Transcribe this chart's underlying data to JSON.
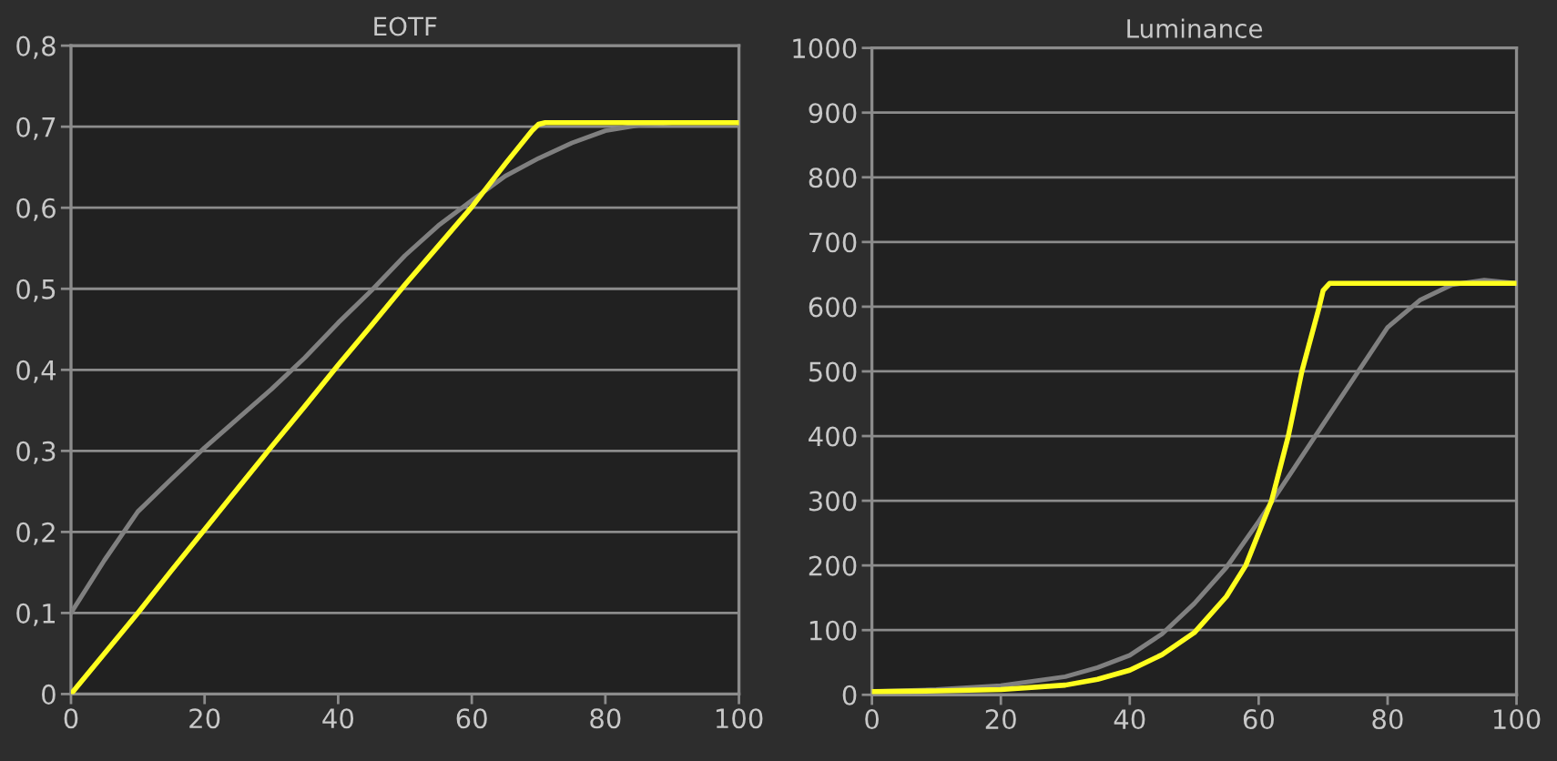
{
  "chart_data": [
    {
      "type": "line",
      "title": "EOTF",
      "xlim": [
        0,
        100
      ],
      "ylim": [
        0,
        0.8
      ],
      "xticks": [
        0,
        20,
        40,
        60,
        80,
        100
      ],
      "yticks": [
        0,
        {
          "value": 0.1,
          "label": "0,1"
        },
        {
          "value": 0.2,
          "label": "0,2"
        },
        {
          "value": 0.3,
          "label": "0,3"
        },
        {
          "value": 0.4,
          "label": "0,4"
        },
        {
          "value": 0.5,
          "label": "0,5"
        },
        {
          "value": 0.6,
          "label": "0,6"
        },
        {
          "value": 0.7,
          "label": "0,7"
        },
        {
          "value": 0.8,
          "label": "0,8"
        }
      ],
      "grid": "y",
      "series": [
        {
          "color": "#808080",
          "x": [
            0,
            5,
            10,
            15,
            20,
            25,
            30,
            35,
            40,
            45,
            50,
            55,
            60,
            65,
            70,
            75,
            80,
            85,
            90,
            100
          ],
          "values": [
            0.1,
            0.165,
            0.225,
            0.265,
            0.304,
            0.34,
            0.376,
            0.415,
            0.458,
            0.498,
            0.541,
            0.578,
            0.609,
            0.639,
            0.661,
            0.68,
            0.695,
            0.702,
            0.705,
            0.705
          ]
        },
        {
          "color": "#ffff1e",
          "x": [
            0,
            5,
            10,
            15,
            20,
            25,
            30,
            35,
            40,
            45,
            50,
            55,
            60,
            65,
            69,
            70,
            71,
            100
          ],
          "values": [
            0,
            0.05,
            0.1,
            0.152,
            0.203,
            0.254,
            0.305,
            0.355,
            0.406,
            0.455,
            0.505,
            0.553,
            0.601,
            0.654,
            0.695,
            0.703,
            0.705,
            0.705
          ]
        }
      ]
    },
    {
      "type": "line",
      "title": "Luminance",
      "xlim": [
        0,
        100
      ],
      "ylim": [
        0,
        1000
      ],
      "xticks": [
        0,
        20,
        40,
        60,
        80,
        100
      ],
      "yticks": [
        0,
        100,
        200,
        300,
        400,
        500,
        600,
        700,
        800,
        900,
        1000
      ],
      "grid": "y",
      "series": [
        {
          "color": "#808080",
          "x": [
            0,
            10,
            20,
            30,
            35,
            40,
            45,
            50,
            55,
            60,
            65,
            70,
            75,
            80,
            85,
            90,
            95,
            100
          ],
          "values": [
            5,
            8,
            14,
            28,
            42,
            61,
            94,
            141,
            197,
            268,
            343,
            418,
            493,
            568,
            610,
            634,
            641,
            636
          ]
        },
        {
          "color": "#ffff1e",
          "x": [
            0,
            10,
            20,
            30,
            35,
            40,
            45,
            50,
            55,
            58,
            62,
            64.6,
            66.7,
            69.4,
            70,
            71,
            100
          ],
          "values": [
            5,
            6,
            8,
            15,
            24,
            38,
            62,
            96,
            152,
            200,
            300,
            400,
            500,
            600,
            625,
            636,
            636
          ]
        }
      ]
    }
  ]
}
